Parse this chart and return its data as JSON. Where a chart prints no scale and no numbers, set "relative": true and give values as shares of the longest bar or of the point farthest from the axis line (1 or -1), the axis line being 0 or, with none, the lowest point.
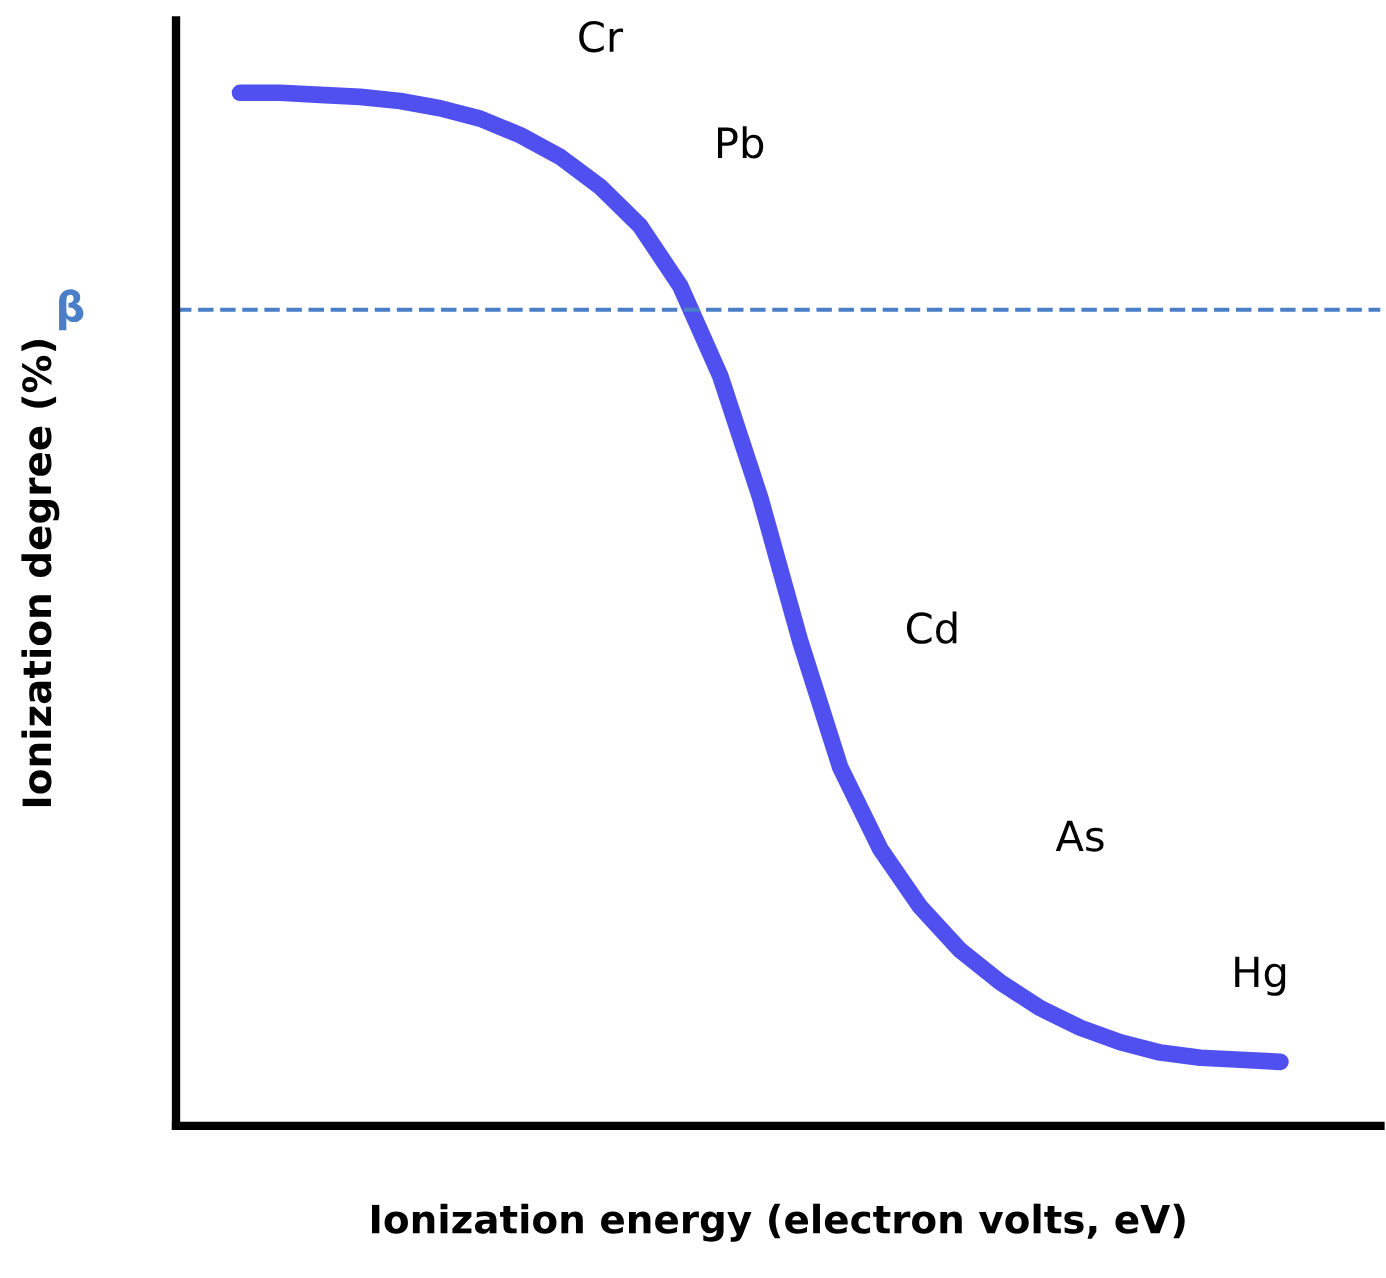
{
  "chart_data": {
    "type": "line",
    "relative": true,
    "xlabel": "Ionization energy (electron volts, eV)",
    "ylabel": "Ionization degree (%)",
    "categories": [
      null,
      null,
      null,
      null,
      null,
      null,
      null,
      null,
      null,
      null,
      null,
      null,
      null,
      null,
      null,
      null,
      null,
      null,
      null,
      null,
      null,
      null,
      null,
      null,
      null,
      null,
      null
    ],
    "series": [
      {
        "color": "#5050f0",
        "values": [
          1.0,
          1.0,
          0.998,
          0.996,
          0.992,
          0.985,
          0.975,
          0.959,
          0.938,
          0.909,
          0.871,
          0.813,
          0.726,
          0.608,
          0.469,
          0.347,
          0.268,
          0.212,
          0.17,
          0.139,
          0.114,
          0.095,
          0.081,
          0.071,
          0.066,
          0.064,
          0.062
        ]
      }
    ],
    "ref_lines": [
      {
        "axis": "y",
        "value": 0.79,
        "label": "β",
        "color": "#4a7fc8",
        "line_style": "dashed"
      }
    ],
    "annotations": [
      "Cr",
      "Pb",
      "Cd",
      "As",
      "Hg"
    ],
    "marker": "none",
    "line_style": "solid"
  }
}
